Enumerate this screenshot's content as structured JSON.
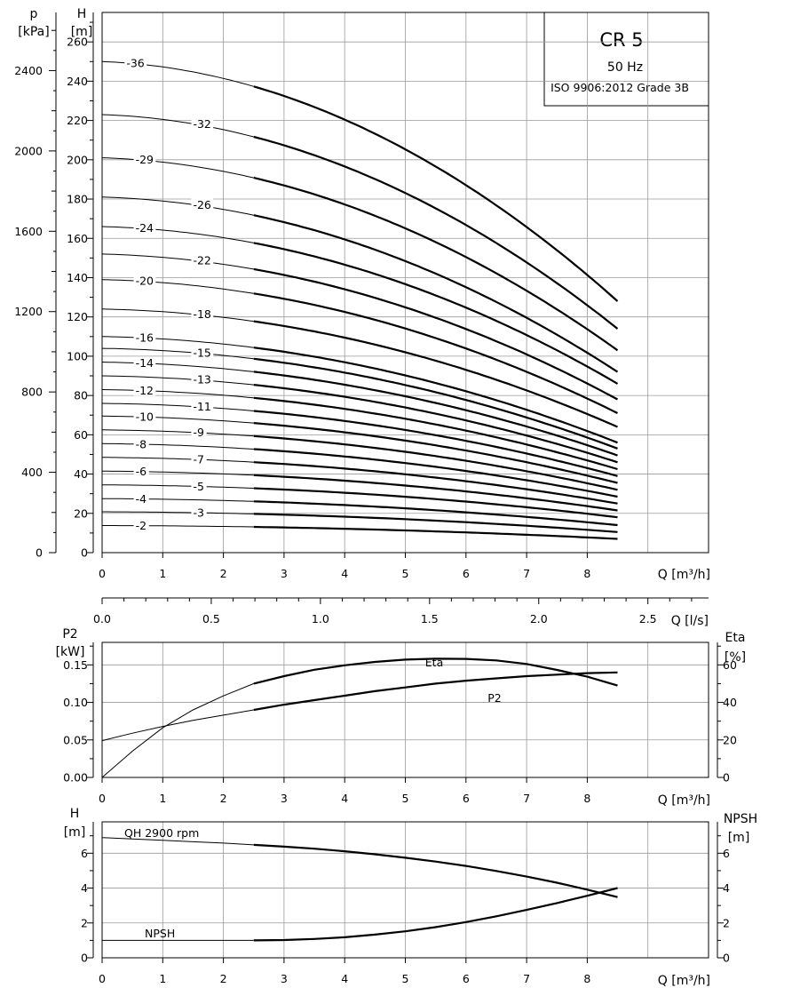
{
  "info_box": {
    "model": "CR 5",
    "frequency": "50 Hz",
    "standard": "ISO 9906:2012 Grade 3B"
  },
  "chart_data": [
    {
      "id": "head",
      "type": "line",
      "left_axis_label_lines": [
        "p",
        "[kPa]"
      ],
      "right_axis_label_lines": [
        "H",
        "[m]"
      ],
      "xlabel": "Q [m³/h]",
      "x_ticks": [
        0,
        1,
        2,
        3,
        4,
        5,
        6,
        7,
        8
      ],
      "xlim": [
        0,
        10
      ],
      "ylim": [
        0,
        275
      ],
      "h_ticks": [
        0,
        20,
        40,
        60,
        80,
        100,
        120,
        140,
        160,
        180,
        200,
        220,
        240,
        260
      ],
      "p_ticks": [
        0,
        400,
        800,
        1200,
        1600,
        2000,
        2400
      ],
      "p_per_m": 9.78,
      "grid": true,
      "bold_range": [
        2.5,
        8.5
      ],
      "series": [
        {
          "name": "36",
          "shutoff": 250,
          "end": 128,
          "label_q": 0.4
        },
        {
          "name": "32",
          "shutoff": 223,
          "end": 114,
          "label_q": 1.5
        },
        {
          "name": "29",
          "shutoff": 201,
          "end": 103,
          "label_q": 0.55
        },
        {
          "name": "26",
          "shutoff": 181,
          "end": 92,
          "label_q": 1.5
        },
        {
          "name": "24",
          "shutoff": 166,
          "end": 86,
          "label_q": 0.55
        },
        {
          "name": "22",
          "shutoff": 152,
          "end": 78,
          "label_q": 1.5
        },
        {
          "name": "20",
          "shutoff": 139,
          "end": 71,
          "label_q": 0.55
        },
        {
          "name": "18",
          "shutoff": 124,
          "end": 64,
          "label_q": 1.5
        },
        {
          "name": "16",
          "shutoff": 110,
          "end": 56,
          "label_q": 0.55
        },
        {
          "name": "15",
          "shutoff": 104,
          "end": 53,
          "label_q": 1.5
        },
        {
          "name": "14",
          "shutoff": 97,
          "end": 49.5,
          "label_q": 0.55
        },
        {
          "name": "13",
          "shutoff": 90,
          "end": 46,
          "label_q": 1.5
        },
        {
          "name": "12",
          "shutoff": 83,
          "end": 42.5,
          "label_q": 0.55
        },
        {
          "name": "11",
          "shutoff": 76,
          "end": 39,
          "label_q": 1.5
        },
        {
          "name": "10",
          "shutoff": 69.5,
          "end": 35.5,
          "label_q": 0.55
        },
        {
          "name": "9",
          "shutoff": 62.5,
          "end": 32,
          "label_q": 1.5
        },
        {
          "name": "8",
          "shutoff": 55.5,
          "end": 28.5,
          "label_q": 0.55
        },
        {
          "name": "7",
          "shutoff": 48.5,
          "end": 25,
          "label_q": 1.5
        },
        {
          "name": "6",
          "shutoff": 41.5,
          "end": 21.5,
          "label_q": 0.55
        },
        {
          "name": "5",
          "shutoff": 34.5,
          "end": 18,
          "label_q": 1.5
        },
        {
          "name": "4",
          "shutoff": 27.5,
          "end": 14,
          "label_q": 0.55
        },
        {
          "name": "3",
          "shutoff": 20.8,
          "end": 10.5,
          "label_q": 1.5
        },
        {
          "name": "2",
          "shutoff": 13.8,
          "end": 7,
          "label_q": 0.55
        }
      ]
    },
    {
      "id": "flow_ls",
      "type": "axis",
      "xlabel": "Q [l/s]",
      "ticks": [
        "0.0",
        "0.5",
        "1.0",
        "1.5",
        "2.0",
        "2.5"
      ],
      "tick_values": [
        0,
        0.5,
        1.0,
        1.5,
        2.0,
        2.5
      ]
    },
    {
      "id": "power_eta",
      "type": "line",
      "left_axis_label_lines": [
        "P2",
        "[kW]"
      ],
      "right_axis_label_lines": [
        "Eta",
        "[%]"
      ],
      "xlabel": "Q [m³/h]",
      "x_ticks": [
        0,
        1,
        2,
        3,
        4,
        5,
        6,
        7,
        8
      ],
      "left_ticks": [
        "0.00",
        "0.05",
        "0.10",
        "0.15"
      ],
      "left_tick_values": [
        0,
        0.05,
        0.1,
        0.15
      ],
      "left_ylim": [
        0,
        0.18
      ],
      "right_ticks": [
        "0",
        "20",
        "40",
        "60"
      ],
      "right_tick_values": [
        0,
        20,
        40,
        60
      ],
      "right_ylim": [
        0,
        72
      ],
      "grid": true,
      "series": [
        {
          "name": "Eta",
          "axis": "right",
          "x": [
            0,
            0.5,
            1,
            1.5,
            2,
            2.5,
            3,
            3.5,
            4,
            4.5,
            5,
            5.5,
            6,
            6.5,
            7,
            7.5,
            8,
            8.5
          ],
          "y": [
            0,
            14,
            26.5,
            36,
            43.5,
            50,
            54,
            57.4,
            59.8,
            61.6,
            62.8,
            63.3,
            63.2,
            62.4,
            60.5,
            57.3,
            53.7,
            49
          ]
        },
        {
          "name": "P2",
          "axis": "left",
          "x": [
            0,
            0.5,
            1,
            1.5,
            2,
            2.5,
            3,
            3.5,
            4,
            4.5,
            5,
            5.5,
            6,
            6.5,
            7,
            7.5,
            8,
            8.5
          ],
          "y": [
            0.049,
            0.059,
            0.068,
            0.076,
            0.083,
            0.09,
            0.097,
            0.103,
            0.109,
            0.115,
            0.12,
            0.125,
            0.129,
            0.132,
            0.135,
            0.137,
            0.139,
            0.14
          ]
        }
      ]
    },
    {
      "id": "npsh",
      "type": "line",
      "left_axis_label_lines": [
        "H",
        "[m]"
      ],
      "right_axis_label_lines": [
        "NPSH",
        "[m]"
      ],
      "xlabel": "Q [m³/h]",
      "x_ticks": [
        0,
        1,
        2,
        3,
        4,
        5,
        6,
        7,
        8
      ],
      "left_ticks": [
        0,
        2,
        4,
        6
      ],
      "right_ticks": [
        0,
        2,
        4,
        6
      ],
      "ylim": [
        0,
        7.8
      ],
      "grid": true,
      "series": [
        {
          "name": "QH 2900 rpm",
          "x": [
            0,
            0.5,
            1,
            1.5,
            2,
            2.5,
            3,
            3.5,
            4,
            4.5,
            5,
            5.5,
            6,
            6.5,
            7,
            7.5,
            8,
            8.5
          ],
          "y": [
            6.9,
            6.82,
            6.74,
            6.66,
            6.58,
            6.48,
            6.38,
            6.26,
            6.11,
            5.94,
            5.74,
            5.52,
            5.27,
            4.98,
            4.66,
            4.31,
            3.91,
            3.48
          ]
        },
        {
          "name": "NPSH",
          "x": [
            0,
            0.5,
            1,
            1.5,
            2,
            2.5,
            3,
            3.5,
            4,
            4.5,
            5,
            5.5,
            6,
            6.5,
            7,
            7.5,
            8,
            8.5
          ],
          "y": [
            1.0,
            1.0,
            1.0,
            1.0,
            1.0,
            1.0,
            1.02,
            1.08,
            1.18,
            1.33,
            1.52,
            1.76,
            2.05,
            2.38,
            2.75,
            3.14,
            3.56,
            4.0
          ]
        }
      ]
    }
  ]
}
